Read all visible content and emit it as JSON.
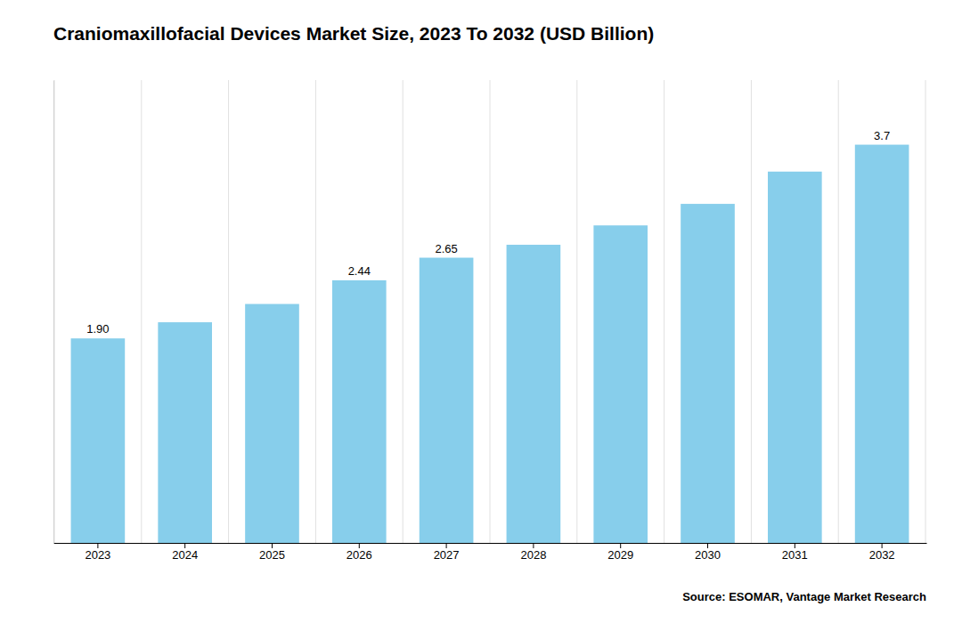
{
  "chart_data": {
    "type": "bar",
    "title": "Craniomaxillofacial Devices Market Size, 2023 To 2032 (USD Billion)",
    "categories": [
      "2023",
      "2024",
      "2025",
      "2026",
      "2027",
      "2028",
      "2029",
      "2030",
      "2031",
      "2032"
    ],
    "values": [
      1.9,
      2.05,
      2.22,
      2.44,
      2.65,
      2.77,
      2.95,
      3.15,
      3.45,
      3.7
    ],
    "value_labels": [
      "1.90",
      null,
      null,
      "2.44",
      "2.65",
      null,
      null,
      null,
      null,
      "3.7"
    ],
    "color": "#87CEEB",
    "ylim": [
      0,
      4.3
    ],
    "tick_labels": "x",
    "grid": true,
    "annotation": "Source: ESOMAR, Vantage Market Research"
  }
}
